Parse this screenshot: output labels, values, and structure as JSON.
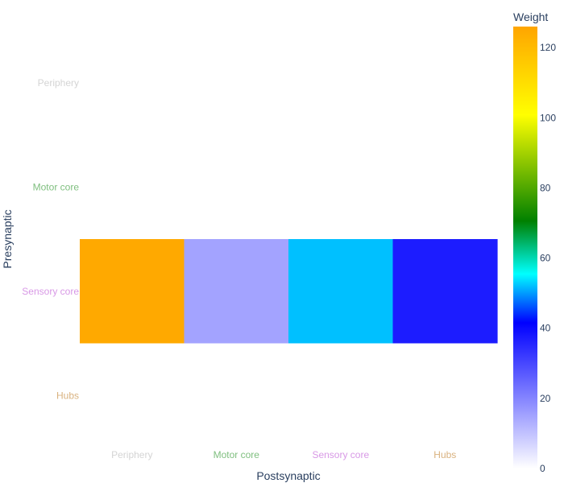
{
  "chart_data": {
    "type": "heatmap",
    "xlabel": "Postsynaptic",
    "ylabel": "Presynaptic",
    "x_categories": [
      {
        "label": "Periphery",
        "color": "#d4d4d4"
      },
      {
        "label": "Motor core",
        "color": "#7fbf7f"
      },
      {
        "label": "Sensory core",
        "color": "#d899e6"
      },
      {
        "label": "Hubs",
        "color": "#d9b27f"
      }
    ],
    "y_categories": [
      {
        "label": "Periphery",
        "color": "#d4d4d4"
      },
      {
        "label": "Motor core",
        "color": "#7fbf7f"
      },
      {
        "label": "Sensory core",
        "color": "#d899e6"
      },
      {
        "label": "Hubs",
        "color": "#d9b27f"
      }
    ],
    "z": [
      [
        null,
        null,
        null,
        null
      ],
      [
        null,
        null,
        null,
        null
      ],
      [
        125,
        15,
        52,
        37
      ],
      [
        null,
        null,
        null,
        null
      ]
    ],
    "colorbar": {
      "title": "Weight",
      "range": [
        0,
        126
      ],
      "ticks": [
        0,
        20,
        40,
        60,
        80,
        100,
        120
      ],
      "colorscale": [
        [
          0.0,
          "#ffffff"
        ],
        [
          0.33,
          "#0000ff"
        ],
        [
          0.44,
          "#00ffff"
        ],
        [
          0.56,
          "#008000"
        ],
        [
          0.8,
          "#ffff00"
        ],
        [
          1.0,
          "#ffa500"
        ]
      ]
    }
  }
}
